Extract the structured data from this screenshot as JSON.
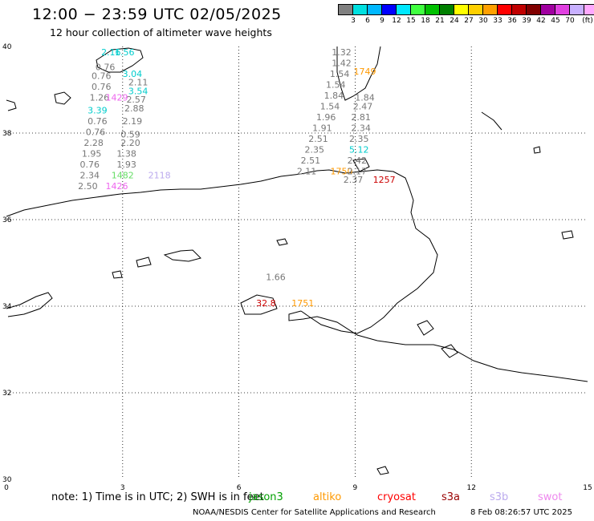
{
  "header": {
    "title": "12:00 − 23:59 UTC 02/05/2025",
    "subtitle": "12 hour collection of altimeter wave heights"
  },
  "colorbar": {
    "colors": [
      "#808080",
      "#00ffff",
      "#00b0ff",
      "#0000ff",
      "#00ffff",
      "#00ff00",
      "#00c000",
      "#008000",
      "#ffff00",
      "#ffc000",
      "#ff8000",
      "#ff0000",
      "#c00000",
      "#800000",
      "#a000a0",
      "#ff00ff",
      "#c0a0ff",
      "#ffa0ff",
      "#000000"
    ],
    "colors_fixed": [
      "#808080",
      "#00e0e0",
      "#00b8ff",
      "#0000ff",
      "#00e8ff",
      "#40ff40",
      "#00c000",
      "#008000",
      "#ffff00",
      "#ffd000",
      "#ffa000",
      "#ff0000",
      "#c00000",
      "#800000",
      "#a000a0",
      "#e040e0",
      "#c8b0ff",
      "#ffa8ff",
      "#000000"
    ],
    "labels": [
      "3",
      "6",
      "9",
      "12",
      "15",
      "18",
      "21",
      "24",
      "27",
      "30",
      "33",
      "36",
      "39",
      "42",
      "45",
      "70",
      "(ft)"
    ]
  },
  "axes": {
    "x_ticks": [
      "0",
      "3",
      "6",
      "9",
      "12",
      "15"
    ],
    "y_ticks": [
      "40",
      "38",
      "36",
      "34",
      "32",
      "30"
    ]
  },
  "note": {
    "prefix": "note:  1) Time is in UTC; 2) SWH is in feet",
    "sats": [
      {
        "name": "jason3",
        "color": "#00a000"
      },
      {
        "name": "altiko",
        "color": "#ff9900"
      },
      {
        "name": "cryosat",
        "color": "#ff0000"
      },
      {
        "name": "s3a",
        "color": "#990000"
      },
      {
        "name": "s3b",
        "color": "#bbaaee"
      },
      {
        "name": "swot",
        "color": "#ee88ee"
      }
    ]
  },
  "footer": {
    "credit": "NOAA/NESDIS Center for Satellite Applications and Research",
    "timestamp": "8 Feb 08:26:57 UTC 2025"
  },
  "observations": [
    {
      "lon": 2.7,
      "lat": 39.8,
      "text": "2.16",
      "color": "#00cccc"
    },
    {
      "lon": 3.05,
      "lat": 39.8,
      "text": "1.56",
      "color": "#00cccc"
    },
    {
      "lon": 2.55,
      "lat": 39.45,
      "text": "0.76",
      "color": "#777777"
    },
    {
      "lon": 2.45,
      "lat": 39.25,
      "text": "0.76",
      "color": "#777777"
    },
    {
      "lon": 3.25,
      "lat": 39.3,
      "text": "3.04",
      "color": "#00cccc"
    },
    {
      "lon": 3.4,
      "lat": 39.1,
      "text": "2.11",
      "color": "#777777"
    },
    {
      "lon": 2.45,
      "lat": 39.0,
      "text": "0.76",
      "color": "#777777"
    },
    {
      "lon": 3.4,
      "lat": 38.9,
      "text": "3.54",
      "color": "#00cccc"
    },
    {
      "lon": 2.4,
      "lat": 38.75,
      "text": "1.26",
      "color": "#777777"
    },
    {
      "lon": 2.85,
      "lat": 38.75,
      "text": "1429",
      "color": "#ee66ee"
    },
    {
      "lon": 3.35,
      "lat": 38.7,
      "text": "2.57",
      "color": "#777777"
    },
    {
      "lon": 2.35,
      "lat": 38.45,
      "text": "3.39",
      "color": "#00cccc"
    },
    {
      "lon": 3.3,
      "lat": 38.5,
      "text": "2.88",
      "color": "#777777"
    },
    {
      "lon": 2.35,
      "lat": 38.2,
      "text": "0.76",
      "color": "#777777"
    },
    {
      "lon": 3.25,
      "lat": 38.2,
      "text": "2.19",
      "color": "#777777"
    },
    {
      "lon": 2.3,
      "lat": 37.95,
      "text": "0.76",
      "color": "#777777"
    },
    {
      "lon": 3.2,
      "lat": 37.9,
      "text": "0.59",
      "color": "#777777"
    },
    {
      "lon": 2.25,
      "lat": 37.7,
      "text": "2.28",
      "color": "#777777"
    },
    {
      "lon": 3.2,
      "lat": 37.7,
      "text": "2.20",
      "color": "#777777"
    },
    {
      "lon": 2.2,
      "lat": 37.45,
      "text": "1.95",
      "color": "#777777"
    },
    {
      "lon": 3.1,
      "lat": 37.45,
      "text": "1.38",
      "color": "#777777"
    },
    {
      "lon": 2.15,
      "lat": 37.2,
      "text": "0.76",
      "color": "#777777"
    },
    {
      "lon": 3.1,
      "lat": 37.2,
      "text": "1.93",
      "color": "#777777"
    },
    {
      "lon": 2.15,
      "lat": 36.95,
      "text": "2.34",
      "color": "#777777"
    },
    {
      "lon": 3.0,
      "lat": 36.95,
      "text": "1482",
      "color": "#66dd66"
    },
    {
      "lon": 3.95,
      "lat": 36.95,
      "text": "2118",
      "color": "#bbaaee"
    },
    {
      "lon": 2.1,
      "lat": 36.7,
      "text": "2.50",
      "color": "#777777"
    },
    {
      "lon": 2.85,
      "lat": 36.7,
      "text": "1426",
      "color": "#ee66ee"
    },
    {
      "lon": 8.65,
      "lat": 39.8,
      "text": "1.32",
      "color": "#777777"
    },
    {
      "lon": 8.65,
      "lat": 39.55,
      "text": "1.42",
      "color": "#777777"
    },
    {
      "lon": 8.6,
      "lat": 39.3,
      "text": "1.54",
      "color": "#777777"
    },
    {
      "lon": 9.25,
      "lat": 39.35,
      "text": "1749",
      "color": "#ff9900"
    },
    {
      "lon": 8.5,
      "lat": 39.05,
      "text": "1.54",
      "color": "#777777"
    },
    {
      "lon": 8.45,
      "lat": 38.8,
      "text": "1.84",
      "color": "#777777"
    },
    {
      "lon": 9.25,
      "lat": 38.75,
      "text": "1.84",
      "color": "#777777"
    },
    {
      "lon": 8.35,
      "lat": 38.55,
      "text": "1.54",
      "color": "#777777"
    },
    {
      "lon": 9.2,
      "lat": 38.55,
      "text": "2.47",
      "color": "#777777"
    },
    {
      "lon": 8.25,
      "lat": 38.3,
      "text": "1.96",
      "color": "#777777"
    },
    {
      "lon": 9.15,
      "lat": 38.3,
      "text": "2.81",
      "color": "#777777"
    },
    {
      "lon": 8.15,
      "lat": 38.05,
      "text": "1.91",
      "color": "#777777"
    },
    {
      "lon": 9.15,
      "lat": 38.05,
      "text": "2.34",
      "color": "#777777"
    },
    {
      "lon": 8.05,
      "lat": 37.8,
      "text": "2.51",
      "color": "#777777"
    },
    {
      "lon": 9.1,
      "lat": 37.8,
      "text": "2.35",
      "color": "#777777"
    },
    {
      "lon": 7.95,
      "lat": 37.55,
      "text": "2.35",
      "color": "#777777"
    },
    {
      "lon": 9.1,
      "lat": 37.55,
      "text": "5.12",
      "color": "#00cccc"
    },
    {
      "lon": 7.85,
      "lat": 37.3,
      "text": "2.51",
      "color": "#777777"
    },
    {
      "lon": 9.05,
      "lat": 37.3,
      "text": "2.42",
      "color": "#777777"
    },
    {
      "lon": 7.75,
      "lat": 37.05,
      "text": "2.11",
      "color": "#777777"
    },
    {
      "lon": 8.65,
      "lat": 37.05,
      "text": "1750",
      "color": "#ff9900"
    },
    {
      "lon": 9.05,
      "lat": 37.05,
      "text": "2.17",
      "color": "#777777"
    },
    {
      "lon": 8.95,
      "lat": 36.85,
      "text": "2.37",
      "color": "#777777"
    },
    {
      "lon": 9.75,
      "lat": 36.85,
      "text": "1257",
      "color": "#cc0000"
    },
    {
      "lon": 6.95,
      "lat": 34.6,
      "text": "1.66",
      "color": "#777777"
    },
    {
      "lon": 6.7,
      "lat": 34.0,
      "text": "32.8",
      "color": "#cc0000"
    },
    {
      "lon": 7.65,
      "lat": 34.0,
      "text": "1751",
      "color": "#ff9900"
    }
  ]
}
